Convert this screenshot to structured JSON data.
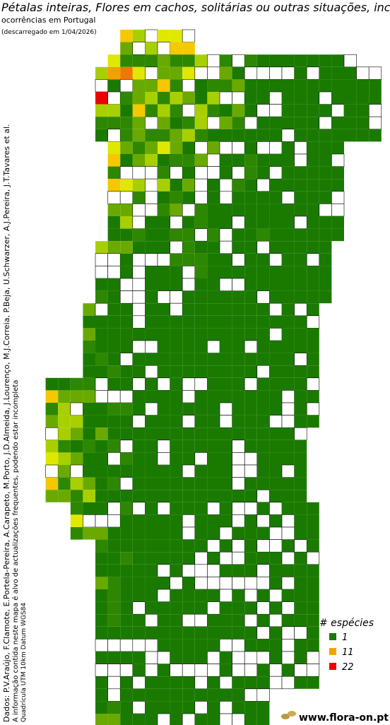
{
  "title": "Pétalas inteiras, Flores em cachos, solitárias ou outras situações, inclu",
  "subtitle": "ocorrências em Portugal",
  "download_note": "(descarregado em 1/04/2026)",
  "credits": "Dados: P.V.Araújo, F.Clamote, E.Portela-Pereira, A.Carapeto, M.Porto, J.D.Almeida, J.Lourenço, M.J.Correia, P.Beja, U.Schwarzer, A.J.Pereira, J.T.Tavares et al.",
  "disclaimer": "A informação contida neste mapa é alvo de actualizações frequentes, podendo estar incompleta",
  "grid_note": "Quadrícula UTM 10km Datum WGS84",
  "legend": {
    "title": "# espécies",
    "items": [
      {
        "value": 1,
        "color": "#1a7a00"
      },
      {
        "value": 11,
        "color": "#f5a000"
      },
      {
        "value": 22,
        "color": "#ee0000"
      }
    ]
  },
  "logo": "www.flora-on.pt"
}
